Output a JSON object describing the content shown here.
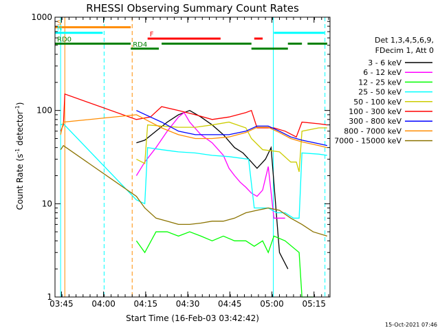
{
  "title": "RHESSI Observing Summary Count Rates",
  "xlabel": "Start Time (16-Feb-03 03:42:42)",
  "ylabel_parts": [
    "Count Rate (s",
    "-1",
    " detector",
    "-1",
    ")"
  ],
  "footer_date": "15-Oct-2021 07:46",
  "chart_data": {
    "type": "line",
    "title": "RHESSI Observing Summary Count Rates",
    "xlabel": "Start Time (16-Feb-03 03:42:42)",
    "ylabel": "Count Rate (s-1 detector-1)",
    "x_axis": {
      "unit": "minutes since 03:42:42",
      "xlim": [
        0,
        98
      ],
      "ticks": [
        {
          "label": "03:45",
          "t": 2.3
        },
        {
          "label": "04:00",
          "t": 17.3
        },
        {
          "label": "04:15",
          "t": 32.3
        },
        {
          "label": "04:30",
          "t": 47.3
        },
        {
          "label": "04:45",
          "t": 62.3
        },
        {
          "label": "05:00",
          "t": 77.3
        },
        {
          "label": "05:15",
          "t": 92.3
        }
      ]
    },
    "y_axis": {
      "scale": "log",
      "ylim": [
        1,
        1000
      ],
      "ticks": [
        {
          "label": "1",
          "v": 1
        },
        {
          "label": "10",
          "v": 10
        },
        {
          "label": "100",
          "v": 100
        },
        {
          "label": "1000",
          "v": 1000
        }
      ]
    },
    "legend": {
      "placement": "right",
      "header": [
        "Det 1,3,4,5,6,9,",
        "FDecim 1, Att 0"
      ]
    },
    "series": [
      {
        "name": "3 - 6 keV",
        "color": "#000000",
        "points": [
          [
            29,
            45
          ],
          [
            32,
            48
          ],
          [
            36,
            60
          ],
          [
            40,
            75
          ],
          [
            44,
            90
          ],
          [
            48,
            100
          ],
          [
            52,
            85
          ],
          [
            56,
            70
          ],
          [
            60,
            55
          ],
          [
            64,
            40
          ],
          [
            67,
            35
          ],
          [
            70,
            28
          ],
          [
            72,
            24
          ],
          [
            75,
            30
          ],
          [
            77,
            40
          ],
          [
            80,
            3
          ],
          [
            83,
            2
          ]
        ]
      },
      {
        "name": "6 - 12 keV",
        "color": "#ff00ff",
        "points": [
          [
            29,
            20
          ],
          [
            32,
            28
          ],
          [
            36,
            40
          ],
          [
            40,
            60
          ],
          [
            44,
            85
          ],
          [
            46,
            95
          ],
          [
            48,
            75
          ],
          [
            52,
            55
          ],
          [
            56,
            45
          ],
          [
            60,
            33
          ],
          [
            62,
            24
          ],
          [
            64,
            20
          ],
          [
            66,
            17
          ],
          [
            68,
            15
          ],
          [
            70,
            13
          ],
          [
            72,
            12
          ],
          [
            74,
            14
          ],
          [
            76,
            25
          ],
          [
            78,
            7
          ],
          [
            82,
            7
          ]
        ]
      },
      {
        "name": "12 - 25 keV",
        "color": "#00ff00",
        "points": [
          [
            29,
            4
          ],
          [
            32,
            3
          ],
          [
            36,
            5
          ],
          [
            40,
            5
          ],
          [
            44,
            4.5
          ],
          [
            48,
            5
          ],
          [
            52,
            4.5
          ],
          [
            56,
            4
          ],
          [
            60,
            4.5
          ],
          [
            64,
            4
          ],
          [
            68,
            4
          ],
          [
            71,
            3.5
          ],
          [
            74,
            4
          ],
          [
            76,
            3
          ],
          [
            78,
            4.5
          ],
          [
            82,
            4
          ],
          [
            87,
            3
          ],
          [
            88,
            1
          ],
          [
            92,
            1
          ]
        ]
      },
      {
        "name": "25 - 50 keV",
        "color": "#00ffff",
        "points": [
          [
            2,
            70
          ],
          [
            3,
            72
          ],
          [
            29,
            11
          ],
          [
            32,
            10
          ],
          [
            33,
            40
          ],
          [
            38,
            38
          ],
          [
            44,
            36
          ],
          [
            50,
            35
          ],
          [
            56,
            33
          ],
          [
            62,
            32
          ],
          [
            69,
            30
          ],
          [
            71,
            9
          ],
          [
            76,
            9
          ],
          [
            79,
            8
          ],
          [
            82,
            8
          ],
          [
            85,
            7
          ],
          [
            87,
            7
          ],
          [
            88,
            35
          ],
          [
            94,
            34
          ],
          [
            97,
            33
          ]
        ]
      },
      {
        "name": "50 - 100 keV",
        "color": "#cccc00",
        "points": [
          [
            29,
            30
          ],
          [
            32,
            27
          ],
          [
            33,
            70
          ],
          [
            38,
            68
          ],
          [
            44,
            66
          ],
          [
            50,
            66
          ],
          [
            56,
            70
          ],
          [
            62,
            75
          ],
          [
            68,
            65
          ],
          [
            70,
            50
          ],
          [
            74,
            38
          ],
          [
            80,
            36
          ],
          [
            84,
            28
          ],
          [
            86,
            28
          ],
          [
            87,
            22
          ],
          [
            88,
            60
          ],
          [
            94,
            65
          ],
          [
            97,
            65
          ]
        ]
      },
      {
        "name": "100 - 300 keV",
        "color": "#ff0000",
        "points": [
          [
            2,
            60
          ],
          [
            3,
            70
          ],
          [
            3.5,
            150
          ],
          [
            29,
            80
          ],
          [
            34,
            85
          ],
          [
            38,
            110
          ],
          [
            44,
            100
          ],
          [
            50,
            90
          ],
          [
            56,
            80
          ],
          [
            62,
            85
          ],
          [
            68,
            95
          ],
          [
            70,
            100
          ],
          [
            72,
            65
          ],
          [
            78,
            65
          ],
          [
            82,
            60
          ],
          [
            86,
            52
          ],
          [
            88,
            75
          ],
          [
            94,
            72
          ],
          [
            97,
            70
          ]
        ]
      },
      {
        "name": "300 - 800 keV",
        "color": "#0000ff",
        "points": [
          [
            29,
            100
          ],
          [
            34,
            85
          ],
          [
            38,
            75
          ],
          [
            44,
            60
          ],
          [
            50,
            55
          ],
          [
            56,
            55
          ],
          [
            62,
            55
          ],
          [
            68,
            60
          ],
          [
            72,
            68
          ],
          [
            76,
            68
          ],
          [
            80,
            60
          ],
          [
            84,
            52
          ],
          [
            88,
            48
          ],
          [
            94,
            44
          ],
          [
            97,
            42
          ]
        ]
      },
      {
        "name": "800 - 7000 keV",
        "color": "#ff8c00",
        "points": [
          [
            2,
            55
          ],
          [
            3,
            75
          ],
          [
            29,
            90
          ],
          [
            34,
            75
          ],
          [
            38,
            65
          ],
          [
            44,
            55
          ],
          [
            50,
            50
          ],
          [
            56,
            50
          ],
          [
            62,
            52
          ],
          [
            68,
            58
          ],
          [
            72,
            66
          ],
          [
            76,
            66
          ],
          [
            80,
            58
          ],
          [
            84,
            50
          ],
          [
            88,
            46
          ],
          [
            94,
            42
          ],
          [
            97,
            40
          ]
        ]
      },
      {
        "name": "7000 - 15000 keV",
        "color": "#8b7300",
        "points": [
          [
            2,
            38
          ],
          [
            3,
            42
          ],
          [
            29,
            12
          ],
          [
            32,
            9
          ],
          [
            36,
            7
          ],
          [
            40,
            6.5
          ],
          [
            44,
            6
          ],
          [
            48,
            6
          ],
          [
            52,
            6.2
          ],
          [
            56,
            6.5
          ],
          [
            60,
            6.5
          ],
          [
            64,
            7
          ],
          [
            68,
            8
          ],
          [
            72,
            8.5
          ],
          [
            76,
            9
          ],
          [
            80,
            8.5
          ],
          [
            84,
            7
          ],
          [
            88,
            6
          ],
          [
            92,
            5
          ],
          [
            97,
            4.5
          ]
        ]
      }
    ],
    "annotations": [
      {
        "label": "S",
        "color": "#ff8c00",
        "level": 780,
        "segments": [
          [
            0,
            27
          ]
        ]
      },
      {
        "label": "N",
        "color": "#00ffff",
        "level": 680,
        "segments": [
          [
            0,
            17
          ],
          [
            78,
            96
          ]
        ]
      },
      {
        "label": "F",
        "color": "#ff0000",
        "level": 590,
        "segments": [
          [
            33,
            59
          ],
          [
            71,
            74
          ]
        ]
      },
      {
        "label": "RD0",
        "color": "#008000",
        "level": 520,
        "segments": [
          [
            0,
            27
          ],
          [
            38,
            70
          ],
          [
            83,
            88
          ],
          [
            90,
            97
          ]
        ]
      },
      {
        "label": "RD4",
        "color": "#008000",
        "level": 460,
        "segments": [
          [
            27,
            37
          ],
          [
            70,
            83
          ]
        ]
      }
    ],
    "vlines": [
      {
        "t": 2.0,
        "color": "#00ffff",
        "style": "solid"
      },
      {
        "t": 3.5,
        "color": "#ff8c00",
        "style": "solid"
      },
      {
        "t": 17.5,
        "color": "#00ffff",
        "style": "dashed"
      },
      {
        "t": 27.5,
        "color": "#ff8c00",
        "style": "dashed"
      },
      {
        "t": 77.8,
        "color": "#00ffff",
        "style": "solid"
      },
      {
        "t": 96.2,
        "color": "#00ffff",
        "style": "dashed"
      }
    ]
  }
}
